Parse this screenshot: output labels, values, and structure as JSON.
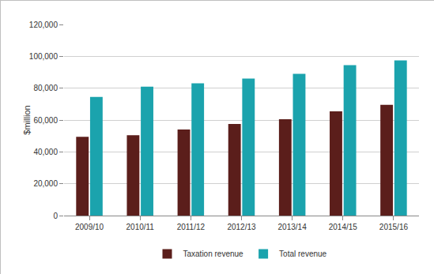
{
  "chart_data": {
    "type": "bar",
    "y_label": "$million",
    "categories": [
      "2009/10",
      "2010/11",
      "2011/12",
      "2012/13",
      "2013/14",
      "2014/15",
      "2015/16"
    ],
    "series": [
      {
        "name": "Taxation revenue",
        "color": "#5b1e1b",
        "values": [
          49500,
          50500,
          54000,
          57500,
          60500,
          65500,
          69500
        ]
      },
      {
        "name": "Total revenue",
        "color": "#1ba3ad",
        "values": [
          74500,
          81000,
          83000,
          86000,
          89000,
          94500,
          97500
        ]
      }
    ],
    "ylim": [
      0,
      120000
    ],
    "yticks": [
      0,
      {
        "value": 20000,
        "label": "20,000"
      },
      {
        "value": 40000,
        "label": "40,000"
      },
      {
        "value": 60000,
        "label": "60,000"
      },
      {
        "value": 80000,
        "label": "80,000"
      },
      {
        "value": 100000,
        "label": "100,000"
      },
      {
        "value": 120000,
        "label": "120,000"
      }
    ],
    "grid": true,
    "legend": "bottom"
  }
}
